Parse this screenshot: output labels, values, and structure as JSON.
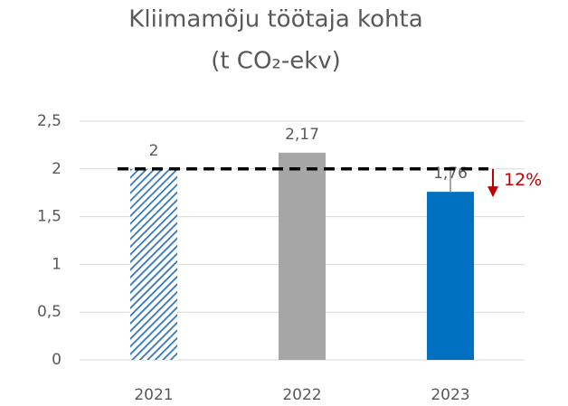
{
  "chart_data": {
    "type": "bar",
    "title": "Kliimamõju töötaja kohta",
    "subtitle": "(t CO₂-ekv)",
    "categories": [
      "2021",
      "2022",
      "2023"
    ],
    "values": [
      2,
      2.17,
      1.76
    ],
    "value_labels": [
      "2",
      "2,17",
      "1,76"
    ],
    "colors": [
      "#2e75b6",
      "#a6a6a6",
      "#0070c0"
    ],
    "hatched": [
      true,
      false,
      false
    ],
    "ylim": [
      0,
      2.5
    ],
    "yticks": [
      0,
      {
        "value": 0.5,
        "label": "0,5"
      },
      1,
      {
        "value": 1.5,
        "label": "1,5"
      },
      2,
      {
        "value": 2.5,
        "label": "2,5"
      }
    ],
    "grid": true,
    "reference_line": 2,
    "annotation": "12%",
    "annotation_color": "#c00000"
  }
}
